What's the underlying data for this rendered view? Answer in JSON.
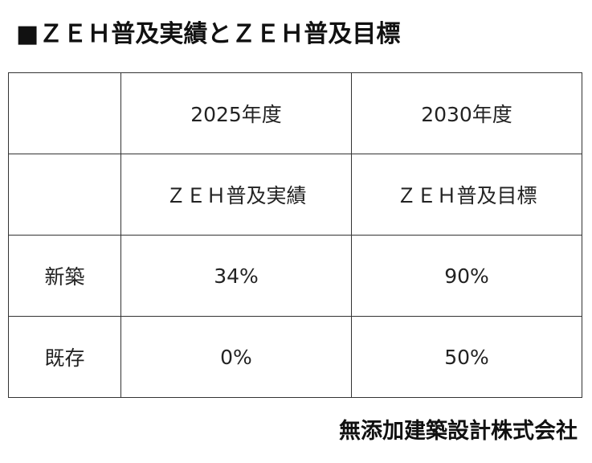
{
  "title": "■ＺＥＨ普及実績とＺＥＨ普及目標",
  "table": {
    "header_year": [
      "",
      "2025年度",
      "2030年度"
    ],
    "header_metric": [
      "",
      "ＺＥＨ普及実績",
      "ＺＥＨ普及目標"
    ],
    "rows": [
      {
        "label": "新築",
        "values": [
          "34%",
          "90%"
        ]
      },
      {
        "label": "既存",
        "values": [
          "0%",
          "50%"
        ]
      }
    ]
  },
  "footer": "無添加建築設計株式会社"
}
